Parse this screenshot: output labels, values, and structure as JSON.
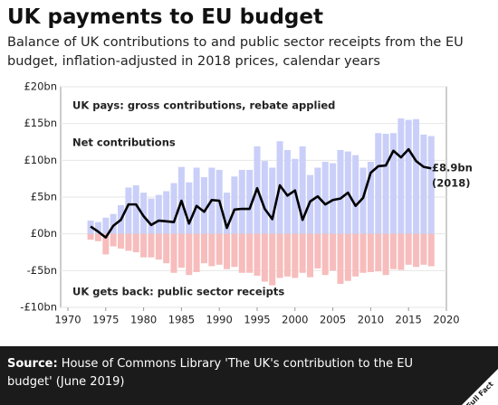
{
  "chart_data": {
    "type": "bar",
    "title": "UK payments to EU budget",
    "subtitle": "Balance of UK contributions to and public sector receipts from the EU budget, inflation-adjusted in 2018 prices, calendar years",
    "x": [
      1973,
      1974,
      1975,
      1976,
      1977,
      1978,
      1979,
      1980,
      1981,
      1982,
      1983,
      1984,
      1985,
      1986,
      1987,
      1988,
      1989,
      1990,
      1991,
      1992,
      1993,
      1994,
      1995,
      1996,
      1997,
      1998,
      1999,
      2000,
      2001,
      2002,
      2003,
      2004,
      2005,
      2006,
      2007,
      2008,
      2009,
      2010,
      2011,
      2012,
      2013,
      2014,
      2015,
      2016,
      2017,
      2018
    ],
    "series": [
      {
        "name": "UK pays: gross contributions, rebate applied",
        "type": "bar",
        "color": "#c9cff8",
        "label_color": "#7f98f2",
        "values": [
          1.8,
          1.6,
          2.2,
          2.7,
          3.9,
          6.3,
          6.6,
          5.6,
          4.8,
          5.3,
          5.8,
          6.9,
          9.1,
          7.0,
          9.0,
          7.7,
          9.0,
          8.7,
          5.6,
          7.8,
          8.7,
          8.7,
          11.9,
          9.9,
          9.0,
          12.6,
          11.4,
          10.2,
          11.9,
          8.0,
          9.0,
          9.8,
          9.6,
          11.4,
          11.2,
          10.7,
          9.0,
          9.8,
          13.7,
          13.6,
          13.7,
          15.7,
          15.5,
          15.6,
          13.5,
          13.3
        ]
      },
      {
        "name": "UK gets back: public sector receipts",
        "type": "bar",
        "color": "#f7bcbc",
        "label_color": "#f08c8c",
        "values": [
          -0.8,
          -1.0,
          -2.8,
          -1.7,
          -2.0,
          -2.3,
          -2.5,
          -3.2,
          -3.2,
          -3.5,
          -4.0,
          -5.3,
          -4.6,
          -5.6,
          -5.2,
          -4.0,
          -4.4,
          -4.2,
          -4.8,
          -4.5,
          -5.3,
          -5.3,
          -5.7,
          -6.5,
          -7.0,
          -6.0,
          -5.8,
          -6.0,
          -5.3,
          -5.9,
          -4.7,
          -5.6,
          -5.0,
          -6.8,
          -6.4,
          -5.8,
          -5.3,
          -5.2,
          -5.1,
          -5.6,
          -4.8,
          -4.9,
          -4.2,
          -4.5,
          -4.2,
          -4.4
        ]
      },
      {
        "name": "Net contributions",
        "type": "line",
        "color": "#000000",
        "label_color": "#000000",
        "values": [
          1.0,
          0.3,
          -0.5,
          1.1,
          1.9,
          4.0,
          4.0,
          2.4,
          1.2,
          1.8,
          1.7,
          1.6,
          4.5,
          1.4,
          3.8,
          3.0,
          4.6,
          4.5,
          0.8,
          3.3,
          3.4,
          3.4,
          6.2,
          3.4,
          2.0,
          6.6,
          5.2,
          5.9,
          1.9,
          4.4,
          5.1,
          4.0,
          4.6,
          4.8,
          5.6,
          3.8,
          4.9,
          8.3,
          9.2,
          9.3,
          11.3,
          10.4,
          11.5,
          9.9,
          9.1,
          8.9
        ]
      }
    ],
    "annotations": [
      "£8.9bn",
      "(2018)"
    ],
    "xlim": [
      1970,
      2020
    ],
    "xticks": [
      1970,
      1975,
      1980,
      1985,
      1990,
      1995,
      2000,
      2005,
      2010,
      2015,
      2020
    ],
    "ylim": [
      -10,
      20
    ],
    "yticks": [
      {
        "value": -10,
        "label": "-£10bn"
      },
      {
        "value": -5,
        "label": "-£5bn"
      },
      {
        "value": 0,
        "label": "£0bn"
      },
      {
        "value": 5,
        "label": "£5bn"
      },
      {
        "value": 10,
        "label": "£10bn"
      },
      {
        "value": 15,
        "label": "£15bn"
      },
      {
        "value": 20,
        "label": "£20bn"
      }
    ],
    "grid": true,
    "source_label": "Source:",
    "source_text": "House of Commons Library 'The UK's contribution to the EU budget' (June 2019)",
    "logo": "Full Fact"
  }
}
